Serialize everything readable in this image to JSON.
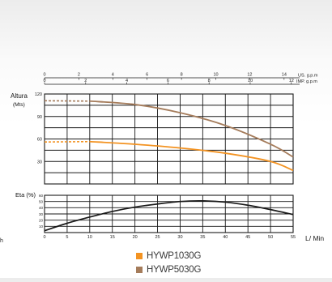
{
  "colors": {
    "series1": "#f39322",
    "series2": "#a57c5b",
    "efficiency": "#1a1a1a",
    "grid": "#1a1a1a"
  },
  "chart_data": [
    {
      "type": "line",
      "name": "head-curve",
      "ylabel": "Altura (Mts)",
      "ylabel_lines": [
        "Altura",
        "(Mts)"
      ],
      "xlim": [
        0,
        55
      ],
      "ylim": [
        0,
        120
      ],
      "y_ticks": [
        "120",
        "90",
        "60",
        "30"
      ],
      "y_tick_values": [
        120,
        90,
        60,
        30
      ],
      "top_axes": [
        {
          "label": "US. g.p.m",
          "ticks": [
            "0",
            "2",
            "4",
            "6",
            "8",
            "10",
            "12",
            "14"
          ],
          "tick_values_lpm": [
            0,
            7.6,
            15.1,
            22.7,
            30.3,
            37.9,
            45.4,
            53.0
          ]
        },
        {
          "label": "IMP. g.p.m",
          "ticks": [
            "0",
            "2",
            "4",
            "6",
            "8",
            "10",
            "12"
          ],
          "tick_values_lpm": [
            0,
            9.1,
            18.2,
            27.3,
            36.4,
            45.5,
            54.6
          ]
        }
      ],
      "series": [
        {
          "name": "HYWP1030G",
          "color": "#f39322",
          "dashed_x": [
            0,
            10
          ],
          "dashed_y": [
            56,
            56.5
          ],
          "x": [
            10,
            20,
            30,
            40,
            50,
            55
          ],
          "y": [
            56.5,
            53,
            48,
            41,
            30,
            18
          ]
        },
        {
          "name": "HYWP5030G",
          "color": "#a57c5b",
          "dashed_x": [
            0,
            10
          ],
          "dashed_y": [
            111,
            110.5
          ],
          "x": [
            10,
            20,
            30,
            40,
            50,
            55
          ],
          "y": [
            110.5,
            106,
            95,
            78,
            53,
            36
          ]
        }
      ],
      "legend": "bottom-center"
    },
    {
      "type": "line",
      "name": "efficiency-curve",
      "ylabel": "Eta (%)",
      "xlabel": "L/ Min",
      "xlim": [
        0,
        55
      ],
      "ylim": [
        0,
        60
      ],
      "x_ticks": [
        "0",
        "5",
        "10",
        "15",
        "20",
        "25",
        "30",
        "35",
        "40",
        "45",
        "50",
        "55"
      ],
      "y_ticks": [
        "60",
        "50",
        "40",
        "30",
        "20",
        "10"
      ],
      "y_tick_values": [
        60,
        50,
        40,
        30,
        20,
        10
      ],
      "series": [
        {
          "name": "Eta",
          "color": "#1a1a1a",
          "x": [
            0,
            5,
            10,
            15,
            20,
            25,
            30,
            35,
            40,
            45,
            50,
            55
          ],
          "y": [
            3,
            15,
            25,
            34,
            41,
            46,
            50,
            51,
            49,
            44,
            37,
            29
          ]
        }
      ]
    }
  ],
  "stray_label": "h"
}
